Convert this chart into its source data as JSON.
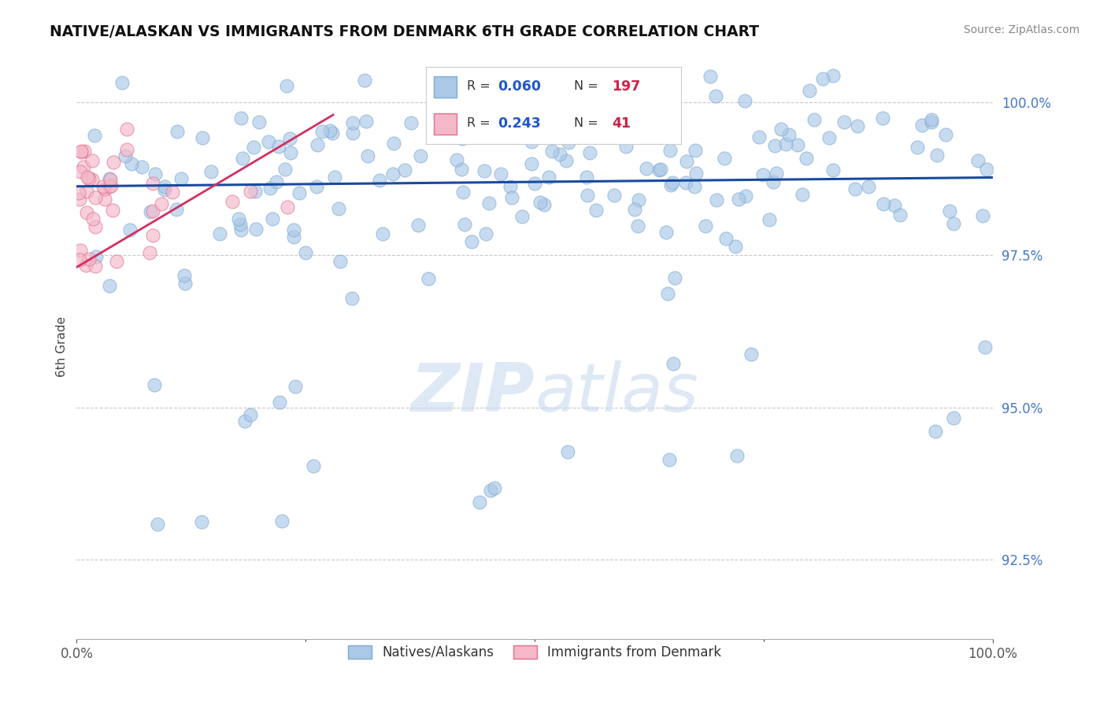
{
  "title": "NATIVE/ALASKAN VS IMMIGRANTS FROM DENMARK 6TH GRADE CORRELATION CHART",
  "source": "Source: ZipAtlas.com",
  "ylabel": "6th Grade",
  "r_blue": 0.06,
  "n_blue": 197,
  "r_pink": 0.243,
  "n_pink": 41,
  "x_min": 0.0,
  "x_max": 1.0,
  "y_min": 0.912,
  "y_max": 1.008,
  "y_ticks": [
    0.925,
    0.95,
    0.975,
    1.0
  ],
  "y_tick_labels": [
    "92.5%",
    "95.0%",
    "97.5%",
    "100.0%"
  ],
  "x_tick_labels": [
    "0.0%",
    "100.0%"
  ],
  "grid_color": "#bbbbbb",
  "blue_color": "#aac8e8",
  "blue_edge": "#80aad0",
  "blue_line": "#1a4a9e",
  "pink_color": "#f4b8c8",
  "pink_edge": "#e07090",
  "pink_line": "#d03060",
  "legend_r_color": "#2255cc",
  "legend_n_color": "#cc2244",
  "label_color": "#4477cc",
  "watermark_color": "#c5d8ee",
  "seed": 12
}
